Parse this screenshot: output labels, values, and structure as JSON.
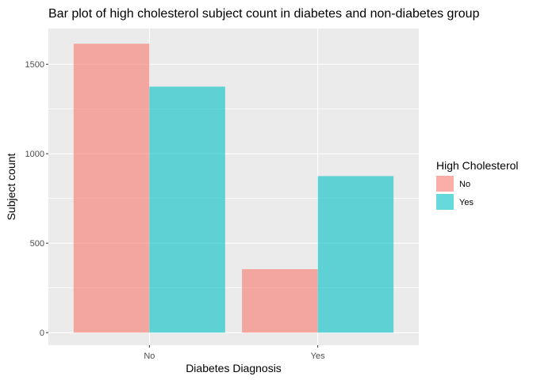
{
  "chart_data": {
    "type": "bar",
    "title": "Bar plot of high cholesterol subject count in diabetes and non-diabetes group",
    "xlabel": "Diabetes Diagnosis",
    "ylabel": "Subject count",
    "categories": [
      "No",
      "Yes"
    ],
    "series": [
      {
        "name": "No",
        "values": [
          1615,
          355
        ],
        "color": "#F8766D"
      },
      {
        "name": "Yes",
        "values": [
          1375,
          875
        ],
        "color": "#00BFC4"
      }
    ],
    "ylim": [
      -70,
      1700
    ],
    "yticks": [
      0,
      500,
      1000,
      1500
    ],
    "ytick_labels": [
      "0",
      "500",
      "1000",
      "1500"
    ],
    "grid": true,
    "legend": {
      "title": "High Cholesterol",
      "position": "right"
    },
    "panel_color": "#EBEBEB"
  }
}
